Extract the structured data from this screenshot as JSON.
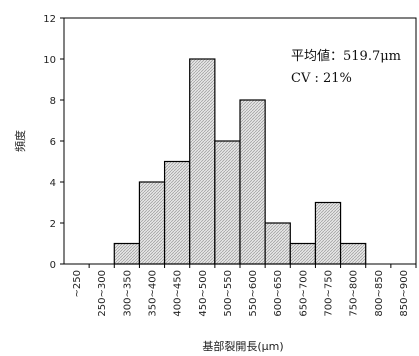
{
  "chart_data": {
    "type": "bar",
    "categories": [
      "~250",
      "250~300",
      "300~350",
      "350~400",
      "400~450",
      "450~500",
      "500~550",
      "550~600",
      "600~650",
      "650~700",
      "700~750",
      "750~800",
      "800~850",
      "850~900"
    ],
    "values": [
      0,
      0,
      1,
      4,
      5,
      10,
      6,
      8,
      2,
      1,
      3,
      1,
      0,
      0
    ],
    "xlabel": "基部裂開長(μm)",
    "ylabel": "頻度",
    "ylim": [
      0,
      12
    ],
    "yticks": [
      0,
      2,
      4,
      6,
      8,
      10,
      12
    ],
    "grid": false,
    "bar_fill": "#d9d9d9",
    "bar_stroke": "#000000",
    "annotations": [
      "平均値：519.7μm",
      "CV : 21%"
    ]
  }
}
